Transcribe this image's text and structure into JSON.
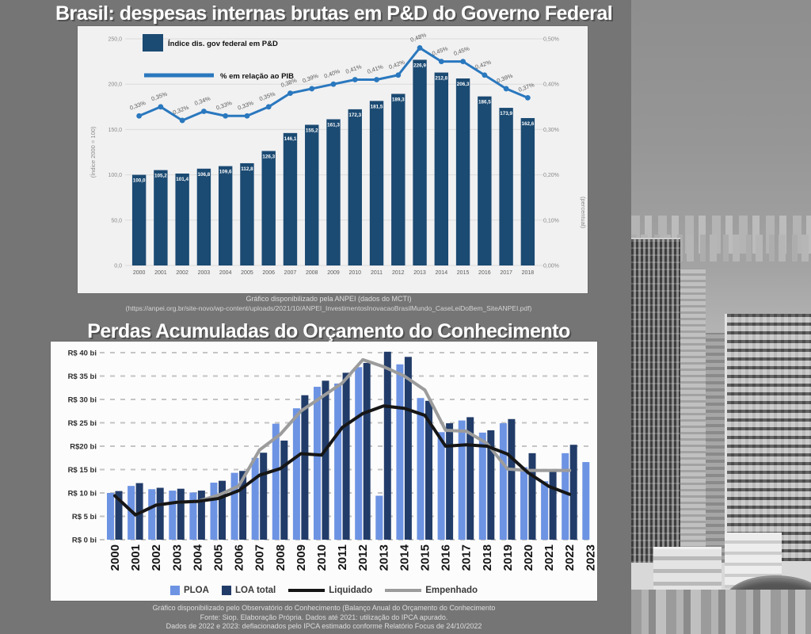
{
  "page": {
    "background": "#757575"
  },
  "chart1_section": {
    "title": "Brasil: despesas internas brutas em P&D do Governo Federal",
    "caption_line1": "Gráfico disponibilizado pela ANPEI (dados do MCTI)",
    "caption_line2": "(https://anpei.org.br/site-novo/wp-content/uploads/2021/10/ANPEI_InvestimentosInovacaoBrasilMundo_CaseLeiDoBem_SiteANPEI.pdf)"
  },
  "chart2_section": {
    "title": "Perdas Acumuladas do Orçamento do Conhecimento",
    "caption_line1": "Gráfico disponibilizado pelo Observatório do Conhecimento (Balanço Anual do Orçamento do Conhecimento",
    "caption_line2": "Fonte: Siop. Elaboração Própria. Dados até 2021: utilização do IPCA apurado.",
    "caption_line3": "Dados de 2022 e 2023: deflacionados pelo IPCA estimado conforme Relatório Focus de 24/10/2022"
  },
  "photo": {
    "description": "grayscale aerial photo of dense city skyline with striped high-rise towers and a rooftop helipad"
  },
  "chart_data": [
    {
      "type": "bar",
      "title": "Brasil: despesas internas brutas em P&D do Governo Federal",
      "categories": [
        "2000",
        "2001",
        "2002",
        "2003",
        "2004",
        "2005",
        "2006",
        "2007",
        "2008",
        "2009",
        "2010",
        "2011",
        "2012",
        "2013",
        "2014",
        "2015",
        "2016",
        "2017",
        "2018"
      ],
      "series": [
        {
          "name": "Índice dis. gov federal em P&D",
          "type": "bar",
          "color": "#1b4a72",
          "values": [
            100.0,
            105.2,
            101.4,
            106.8,
            109.6,
            112.8,
            126.3,
            146.1,
            155.2,
            161.3,
            172.3,
            181.5,
            189.3,
            226.9,
            212.8,
            206.3,
            186.5,
            173.9,
            162.6
          ]
        },
        {
          "name": "% em relação ao PIB",
          "type": "line",
          "color": "#2a78be",
          "values": [
            0.33,
            0.35,
            0.32,
            0.34,
            0.33,
            0.33,
            0.35,
            0.38,
            0.39,
            0.4,
            0.41,
            0.41,
            0.42,
            0.48,
            0.45,
            0.45,
            0.42,
            0.39,
            0.37
          ]
        }
      ],
      "y_left": {
        "label": "(Índice 2000 = 100)",
        "min": 0,
        "max": 250,
        "tick_step": 50
      },
      "y_right": {
        "label": "(percentual)",
        "min": 0,
        "max": 0.5,
        "tick_step": 0.1
      },
      "grid": true,
      "legend_position": "top-left"
    },
    {
      "type": "bar",
      "title": "Perdas Acumuladas do Orçamento do Conhecimento",
      "categories": [
        "2000",
        "2001",
        "2002",
        "2003",
        "2004",
        "2005",
        "2006",
        "2007",
        "2008",
        "2009",
        "2010",
        "2011",
        "2012",
        "2013",
        "2014",
        "2015",
        "2016",
        "2017",
        "2018",
        "2019",
        "2020",
        "2021",
        "2022",
        "2023"
      ],
      "series": [
        {
          "name": "PLOA",
          "type": "bar",
          "color": "#6d93e3",
          "values": [
            10.0,
            11.5,
            10.8,
            10.5,
            10.1,
            12.2,
            14.3,
            17.5,
            24.8,
            28.1,
            32.7,
            33.4,
            36.9,
            9.4,
            37.5,
            30.3,
            23.0,
            25.5,
            22.9,
            24.9,
            15.5,
            12.5,
            18.5,
            16.6
          ]
        },
        {
          "name": "LOA total",
          "type": "bar",
          "color": "#223c69",
          "values": [
            10.4,
            12.1,
            11.1,
            10.9,
            10.5,
            12.6,
            14.7,
            18.6,
            21.2,
            30.9,
            34.0,
            35.7,
            37.8,
            40.2,
            39.1,
            29.7,
            24.9,
            26.2,
            23.4,
            25.8,
            18.5,
            14.6,
            20.3,
            null
          ]
        },
        {
          "name": "Liquidado",
          "type": "line",
          "color": "#161616",
          "values": [
            9.4,
            5.3,
            7.4,
            8.0,
            8.2,
            8.8,
            10.5,
            13.8,
            15.2,
            18.4,
            18.1,
            24.0,
            27.0,
            28.6,
            28.1,
            26.6,
            20.0,
            20.3,
            20.0,
            18.3,
            14.3,
            11.4,
            9.7,
            null
          ]
        },
        {
          "name": "Empenhado",
          "type": "line",
          "color": "#9c9c9c",
          "values": [
            9.4,
            5.3,
            7.4,
            8.0,
            8.2,
            9.5,
            11.5,
            19.2,
            22.5,
            27.5,
            30.5,
            33.5,
            38.5,
            37.0,
            35.0,
            32.0,
            23.4,
            23.2,
            20.6,
            15.1,
            14.8,
            14.8,
            14.8,
            null
          ]
        }
      ],
      "ylabel": "",
      "ylim": [
        0,
        40
      ],
      "y_ticks": [
        "R$ 40 bi",
        "R$ 35 bi",
        "R$ 30 bi",
        "R$ 25 bi",
        "R$20 bi",
        "R$ 15 bi",
        "R$ 10 bi",
        "R$ 5 bi",
        "R$ 0 bi"
      ],
      "grid": "dashed",
      "legend_position": "bottom"
    }
  ]
}
